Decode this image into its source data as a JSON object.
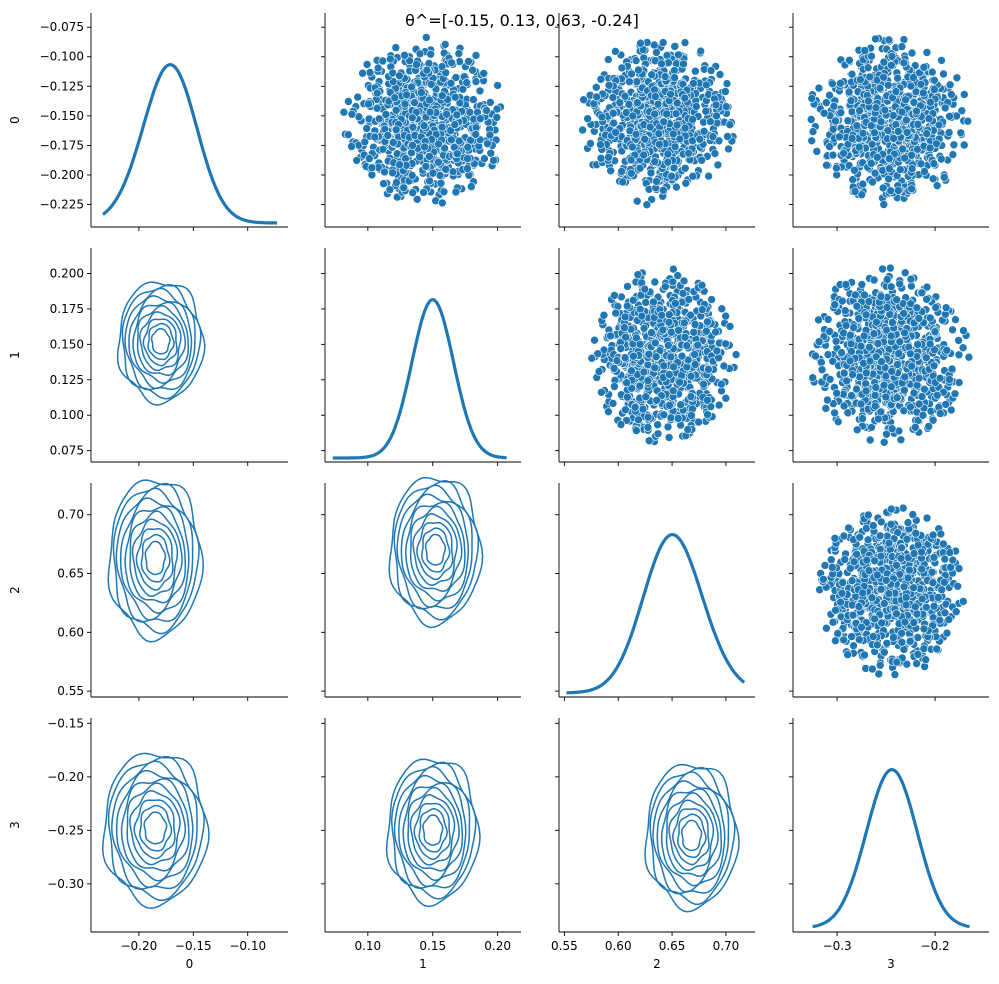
{
  "chart_data": {
    "type": "pairplot",
    "title": "θ^=[-0.15, 0.13, 0.63, -0.24]",
    "variables": [
      "0",
      "1",
      "2",
      "3"
    ],
    "color": "#1f77b4",
    "diag_kind": "kde",
    "upper_kind": "scatter",
    "lower_kind": "kde-contour",
    "n_contour_levels": 10,
    "axes": [
      {
        "name": "0",
        "range": [
          -0.244,
          -0.063
        ],
        "data_range": [
          -0.233,
          -0.073
        ],
        "ticks": [
          -0.2,
          -0.15,
          -0.1
        ],
        "tick_labels": [
          "−0.20",
          "−0.15",
          "−0.10"
        ],
        "row_ticks": [
          -0.225,
          -0.2,
          -0.175,
          -0.15,
          -0.125,
          -0.1,
          -0.075
        ],
        "row_tick_labels": [
          "−0.225",
          "−0.200",
          "−0.175",
          "−0.150",
          "−0.125",
          "−0.100",
          "−0.075"
        ],
        "mean": -0.175,
        "std": 0.025,
        "skew": 0.45
      },
      {
        "name": "1",
        "range": [
          0.067,
          0.218
        ],
        "data_range": [
          0.073,
          0.207
        ],
        "ticks": [
          0.1,
          0.15,
          0.2
        ],
        "tick_labels": [
          "0.10",
          "0.15",
          "0.20"
        ],
        "row_ticks": [
          0.075,
          0.1,
          0.125,
          0.15,
          0.175,
          0.2
        ],
        "row_tick_labels": [
          "0.075",
          "0.100",
          "0.125",
          "0.150",
          "0.175",
          "0.200"
        ],
        "mean": 0.15,
        "std": 0.016,
        "skew": 0.0
      },
      {
        "name": "2",
        "range": [
          0.545,
          0.727
        ],
        "data_range": [
          0.552,
          0.717
        ],
        "ticks": [
          0.55,
          0.6,
          0.65,
          0.7
        ],
        "tick_labels": [
          "0.55",
          "0.60",
          "0.65",
          "0.70"
        ],
        "row_ticks": [
          0.55,
          0.6,
          0.65,
          0.7
        ],
        "row_tick_labels": [
          "0.55",
          "0.60",
          "0.65",
          "0.70"
        ],
        "mean": 0.655,
        "std": 0.028,
        "skew": -0.5
      },
      {
        "name": "3",
        "range": [
          -0.345,
          -0.145
        ],
        "data_range": [
          -0.325,
          -0.165
        ],
        "ticks": [
          -0.3,
          -0.2
        ],
        "tick_labels": [
          "−0.3",
          "−0.2"
        ],
        "row_ticks": [
          -0.3,
          -0.25,
          -0.2,
          -0.15
        ],
        "row_tick_labels": [
          "−0.30",
          "−0.25",
          "−0.20",
          "−0.15"
        ],
        "mean": -0.245,
        "std": 0.026,
        "skew": 0.1
      }
    ],
    "scatter_bounds": {
      "0-1": {
        "x": [
          0.08,
          0.21
        ],
        "y": [
          -0.226,
          -0.083
        ]
      },
      "0-2": {
        "x": [
          0.565,
          0.71
        ],
        "y": [
          -0.226,
          -0.083
        ]
      },
      "0-3": {
        "x": [
          -0.33,
          -0.165
        ],
        "y": [
          -0.226,
          -0.083
        ]
      },
      "1-2": {
        "x": [
          0.575,
          0.71
        ],
        "y": [
          0.08,
          0.205
        ]
      },
      "1-3": {
        "x": [
          -0.33,
          -0.165
        ],
        "y": [
          0.08,
          0.205
        ]
      },
      "2-3": {
        "x": [
          -0.32,
          -0.17
        ],
        "y": [
          0.562,
          0.71
        ]
      }
    },
    "contour_modes": {
      "1-0": {
        "x": -0.18,
        "y": 0.152,
        "w": 0.078,
        "h": 0.085
      },
      "2-0": {
        "x": -0.185,
        "y": 0.663,
        "w": 0.085,
        "h": 0.135
      },
      "2-1": {
        "x": 0.152,
        "y": 0.67,
        "w": 0.07,
        "h": 0.125
      },
      "3-0": {
        "x": -0.185,
        "y": -0.248,
        "w": 0.095,
        "h": 0.142
      },
      "3-1": {
        "x": 0.15,
        "y": -0.25,
        "w": 0.07,
        "h": 0.135
      },
      "3-2": {
        "x": 0.668,
        "y": -0.255,
        "w": 0.085,
        "h": 0.135
      }
    }
  }
}
